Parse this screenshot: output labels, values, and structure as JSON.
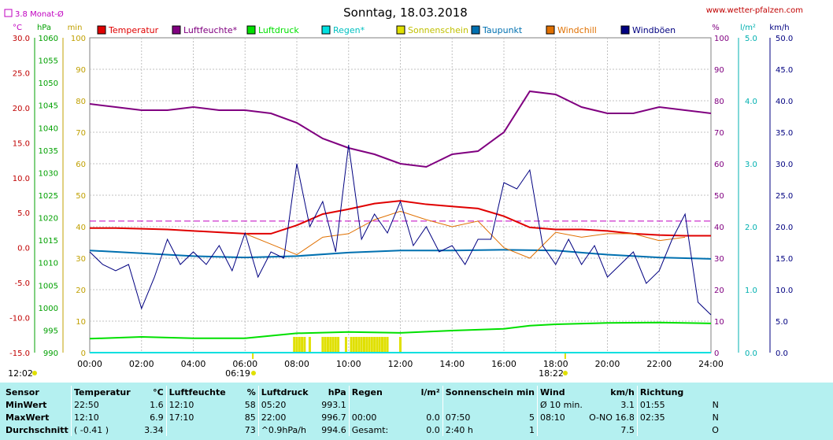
{
  "header": {
    "date_title": "Sonntag, 18.03.2018",
    "website": "www.wetter-pfalzen.com",
    "monthly_avg_label": "3.8 Monat-Ø"
  },
  "units": {
    "celsius": "°C",
    "hpa": "hPa",
    "min": "min",
    "percent": "%",
    "lm2": "l/m²",
    "kmh": "km/h"
  },
  "sun_markers": {
    "sunrise": "06:19",
    "sunset": "18:22",
    "day_start": "12:02"
  },
  "colors": {
    "temperature": "#e00000",
    "humidity": "#800080",
    "pressure": "#00e000",
    "rain": "#00e0e0",
    "sunshine": "#e0e000",
    "dewpoint": "#0070b0",
    "windchill": "#e07000",
    "gusts": "#000080",
    "grid": "#c0c0c0"
  },
  "chart_data": {
    "type": "line",
    "title": "Sonntag, 18.03.2018",
    "x_ticks": [
      "00:00",
      "02:00",
      "04:00",
      "06:00",
      "08:00",
      "10:00",
      "12:00",
      "14:00",
      "16:00",
      "18:00",
      "20:00",
      "22:00",
      "24:00"
    ],
    "xlim_hours": [
      0,
      24
    ],
    "axes": {
      "temperature_c": {
        "ylim": [
          -15,
          30
        ],
        "ticks": [
          "30.0",
          "25.0",
          "20.0",
          "15.0",
          "10.0",
          "5.0",
          "0.0",
          "-5.0",
          "-10.0",
          "-15.0"
        ]
      },
      "pressure_hpa": {
        "ylim": [
          990,
          1060
        ],
        "ticks": [
          "1060",
          "1055",
          "1050",
          "1045",
          "1040",
          "1035",
          "1030",
          "1025",
          "1020",
          "1015",
          "1010",
          "1005",
          "1000",
          "995",
          "990"
        ]
      },
      "sunshine_min": {
        "ylim": [
          0,
          100
        ],
        "ticks": [
          "100",
          "90",
          "80",
          "70",
          "60",
          "50",
          "40",
          "30",
          "20",
          "10",
          "0"
        ]
      },
      "humidity_pct": {
        "ylim": [
          0,
          100
        ],
        "ticks": [
          "100",
          "90",
          "80",
          "70",
          "60",
          "50",
          "40",
          "30",
          "20",
          "10",
          "0"
        ]
      },
      "rain_lm2": {
        "ylim": [
          0,
          5
        ],
        "ticks": [
          "5.0",
          "4.0",
          "3.0",
          "2.0",
          "1.0",
          "0.0"
        ]
      },
      "wind_kmh": {
        "ylim": [
          0,
          50
        ],
        "ticks": [
          "50.0",
          "45.0",
          "40.0",
          "35.0",
          "30.0",
          "25.0",
          "20.0",
          "15.0",
          "10.0",
          "5.0",
          "0.0"
        ]
      }
    },
    "legend": [
      "Temperatur",
      "Luftfeuchte*",
      "Luftdruck",
      "Regen*",
      "Sonnenschein",
      "Taupunkt",
      "Windchill",
      "Windböen"
    ],
    "monthly_avg_temp_c": 3.8,
    "series": [
      {
        "name": "Temperatur",
        "axis": "temperature_c",
        "x": [
          0,
          1,
          2,
          3,
          4,
          5,
          6,
          7,
          8,
          9,
          10,
          11,
          12,
          13,
          14,
          15,
          16,
          17,
          18,
          19,
          20,
          21,
          22,
          23,
          24
        ],
        "y": [
          2.8,
          2.8,
          2.7,
          2.6,
          2.4,
          2.2,
          2.0,
          2.0,
          3.2,
          4.8,
          5.5,
          6.3,
          6.7,
          6.2,
          5.9,
          5.6,
          4.5,
          2.9,
          2.6,
          2.6,
          2.4,
          2.0,
          1.8,
          1.7,
          1.7
        ]
      },
      {
        "name": "Luftfeuchte*",
        "axis": "humidity_pct",
        "x": [
          0,
          1,
          2,
          3,
          4,
          5,
          6,
          7,
          8,
          9,
          10,
          11,
          12,
          13,
          14,
          15,
          16,
          17,
          18,
          19,
          20,
          21,
          22,
          23,
          24
        ],
        "y": [
          79,
          78,
          77,
          77,
          78,
          77,
          77,
          76,
          73,
          68,
          65,
          63,
          60,
          59,
          63,
          64,
          70,
          83,
          82,
          78,
          76,
          76,
          78,
          77,
          76
        ]
      },
      {
        "name": "Luftdruck",
        "axis": "pressure_hpa",
        "x": [
          0,
          2,
          4,
          6,
          8,
          10,
          12,
          14,
          16,
          17,
          18,
          20,
          22,
          24
        ],
        "y": [
          993.1,
          993.5,
          993.2,
          993.2,
          994.3,
          994.6,
          994.4,
          994.9,
          995.3,
          996.0,
          996.3,
          996.6,
          996.7,
          996.5
        ]
      },
      {
        "name": "Taupunkt",
        "axis": "temperature_c",
        "x": [
          0,
          2,
          4,
          6,
          8,
          10,
          12,
          14,
          16,
          18,
          20,
          22,
          24
        ],
        "y": [
          -0.4,
          -0.8,
          -1.2,
          -1.4,
          -1.2,
          -0.7,
          -0.4,
          -0.4,
          -0.3,
          -0.4,
          -1.0,
          -1.4,
          -1.6
        ]
      },
      {
        "name": "Windchill",
        "axis": "temperature_c",
        "x": [
          6,
          7,
          8,
          9,
          10,
          11,
          12,
          13,
          14,
          15,
          16,
          17,
          18,
          19,
          20,
          21,
          22,
          23
        ],
        "y": [
          2.0,
          0.5,
          -1.0,
          1.5,
          2.0,
          4.0,
          5.2,
          4.0,
          3.0,
          3.8,
          0.0,
          -1.5,
          2.2,
          1.5,
          2.0,
          2.0,
          1.0,
          1.5
        ]
      },
      {
        "name": "Windböen",
        "axis": "wind_kmh",
        "x": [
          0,
          0.5,
          1,
          1.5,
          2,
          2.5,
          3,
          3.5,
          4,
          4.5,
          5,
          5.5,
          6,
          6.5,
          7,
          7.5,
          8,
          8.5,
          9,
          9.5,
          10,
          10.5,
          11,
          11.5,
          12,
          12.5,
          13,
          13.5,
          14,
          14.5,
          15,
          15.5,
          16,
          16.5,
          17,
          17.5,
          18,
          18.5,
          19,
          19.5,
          20,
          20.5,
          21,
          21.5,
          22,
          22.5,
          23,
          23.5,
          24
        ],
        "y": [
          16,
          14,
          13,
          14,
          7,
          12,
          18,
          14,
          16,
          14,
          17,
          13,
          19,
          12,
          16,
          15,
          30,
          20,
          24,
          16,
          33,
          18,
          22,
          19,
          24,
          17,
          20,
          16,
          17,
          14,
          18,
          18,
          27,
          26,
          29,
          17,
          14,
          18,
          14,
          17,
          12,
          14,
          16,
          11,
          13,
          18,
          22,
          8,
          6
        ]
      },
      {
        "name": "Sonnenschein",
        "axis": "sunshine_min",
        "bars_x": [
          7.9,
          8.0,
          8.1,
          8.2,
          8.3,
          8.5,
          9.0,
          9.1,
          9.2,
          9.3,
          9.4,
          9.5,
          9.6,
          9.9,
          10.1,
          10.2,
          10.3,
          10.4,
          10.5,
          10.6,
          10.7,
          10.8,
          10.9,
          11.0,
          11.1,
          11.2,
          11.3,
          11.4,
          11.5,
          12.0
        ],
        "bar_value": 5
      },
      {
        "name": "Regen*",
        "axis": "rain_lm2",
        "x": [
          0,
          24
        ],
        "y": [
          0,
          0
        ]
      }
    ]
  },
  "stats": {
    "headers": [
      "Sensor",
      "Temperatur",
      "°C",
      "Luftfeuchte",
      "%",
      "Luftdruck",
      "hPa",
      "Regen",
      "l/m²",
      "Sonnenschein min",
      "Wind",
      "km/h",
      "Richtung"
    ],
    "rows": [
      [
        "MinWert",
        "22:50",
        "1.6",
        "12:10",
        "58",
        "05:20",
        "993.1",
        "",
        "",
        "",
        "",
        "Ø 10 min.",
        "3.1",
        "01:55",
        "N"
      ],
      [
        "MaxWert",
        "12:10",
        "6.9",
        "17:10",
        "85",
        "22:00",
        "996.7",
        "00:00",
        "0.0",
        "07:50",
        "5",
        "08:10",
        "O-NO 16.8",
        "02:35",
        "N"
      ],
      [
        "Durchschnitt",
        "( -0.41 )",
        "3.34",
        "",
        "73",
        "^0.9hPa/h",
        "994.6",
        "Gesamt:",
        "0.0",
        "2:40 h",
        "1",
        "",
        "7.5",
        "",
        "O"
      ]
    ]
  }
}
